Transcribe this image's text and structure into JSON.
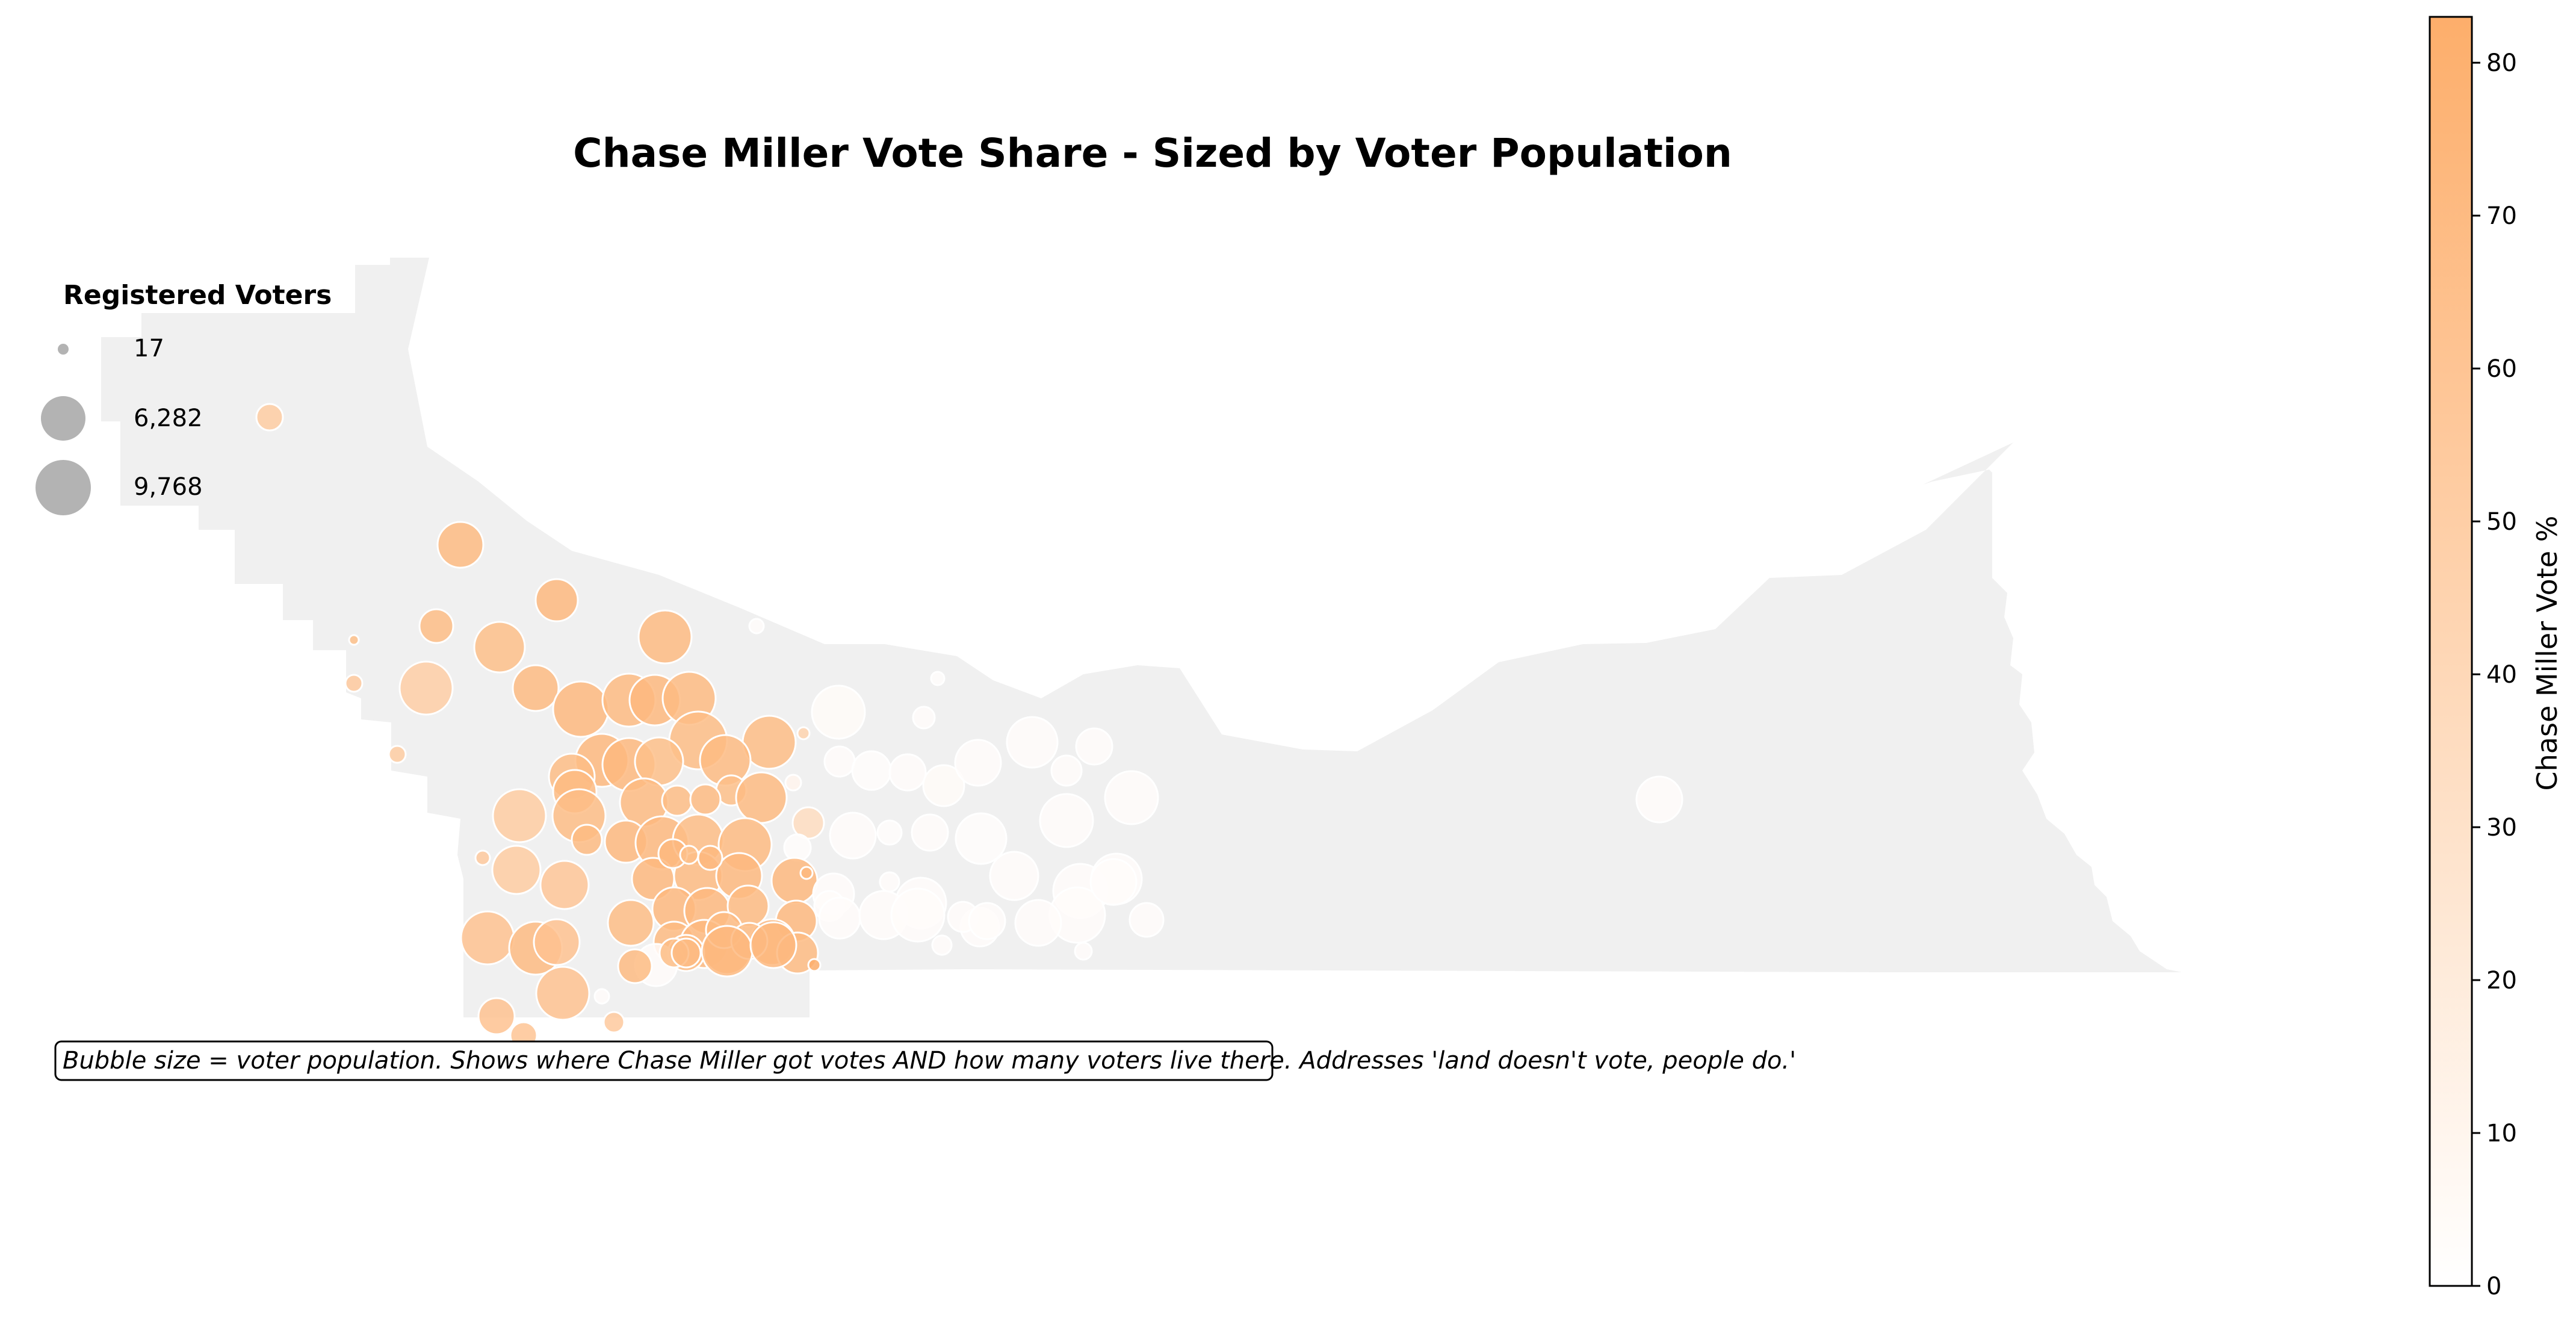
{
  "title": "Chase Miller Vote Share - Sized by Voter Population",
  "legend": {
    "title": "Registered Voters",
    "entries": [
      {
        "label": "17",
        "value": 17
      },
      {
        "label": "6,282",
        "value": 6282
      },
      {
        "label": "9,768",
        "value": 9768
      }
    ]
  },
  "note": "Bubble size = voter population. Shows where Chase Miller got votes AND how many voters live there. Addresses 'land doesn't vote, people do.'",
  "colorbar": {
    "label": "Chase Miller Vote %",
    "min": 0,
    "max": 83,
    "ticks": [
      "0",
      "10",
      "20",
      "30",
      "40",
      "50",
      "60",
      "70",
      "80"
    ],
    "color_low": "#ffffff",
    "color_high": "#fdae6b"
  },
  "colors": {
    "region_fill": "#f0f0f0",
    "bubble_stroke": "#ffffff",
    "legend_bubble": "#b3b3b3"
  }
}
